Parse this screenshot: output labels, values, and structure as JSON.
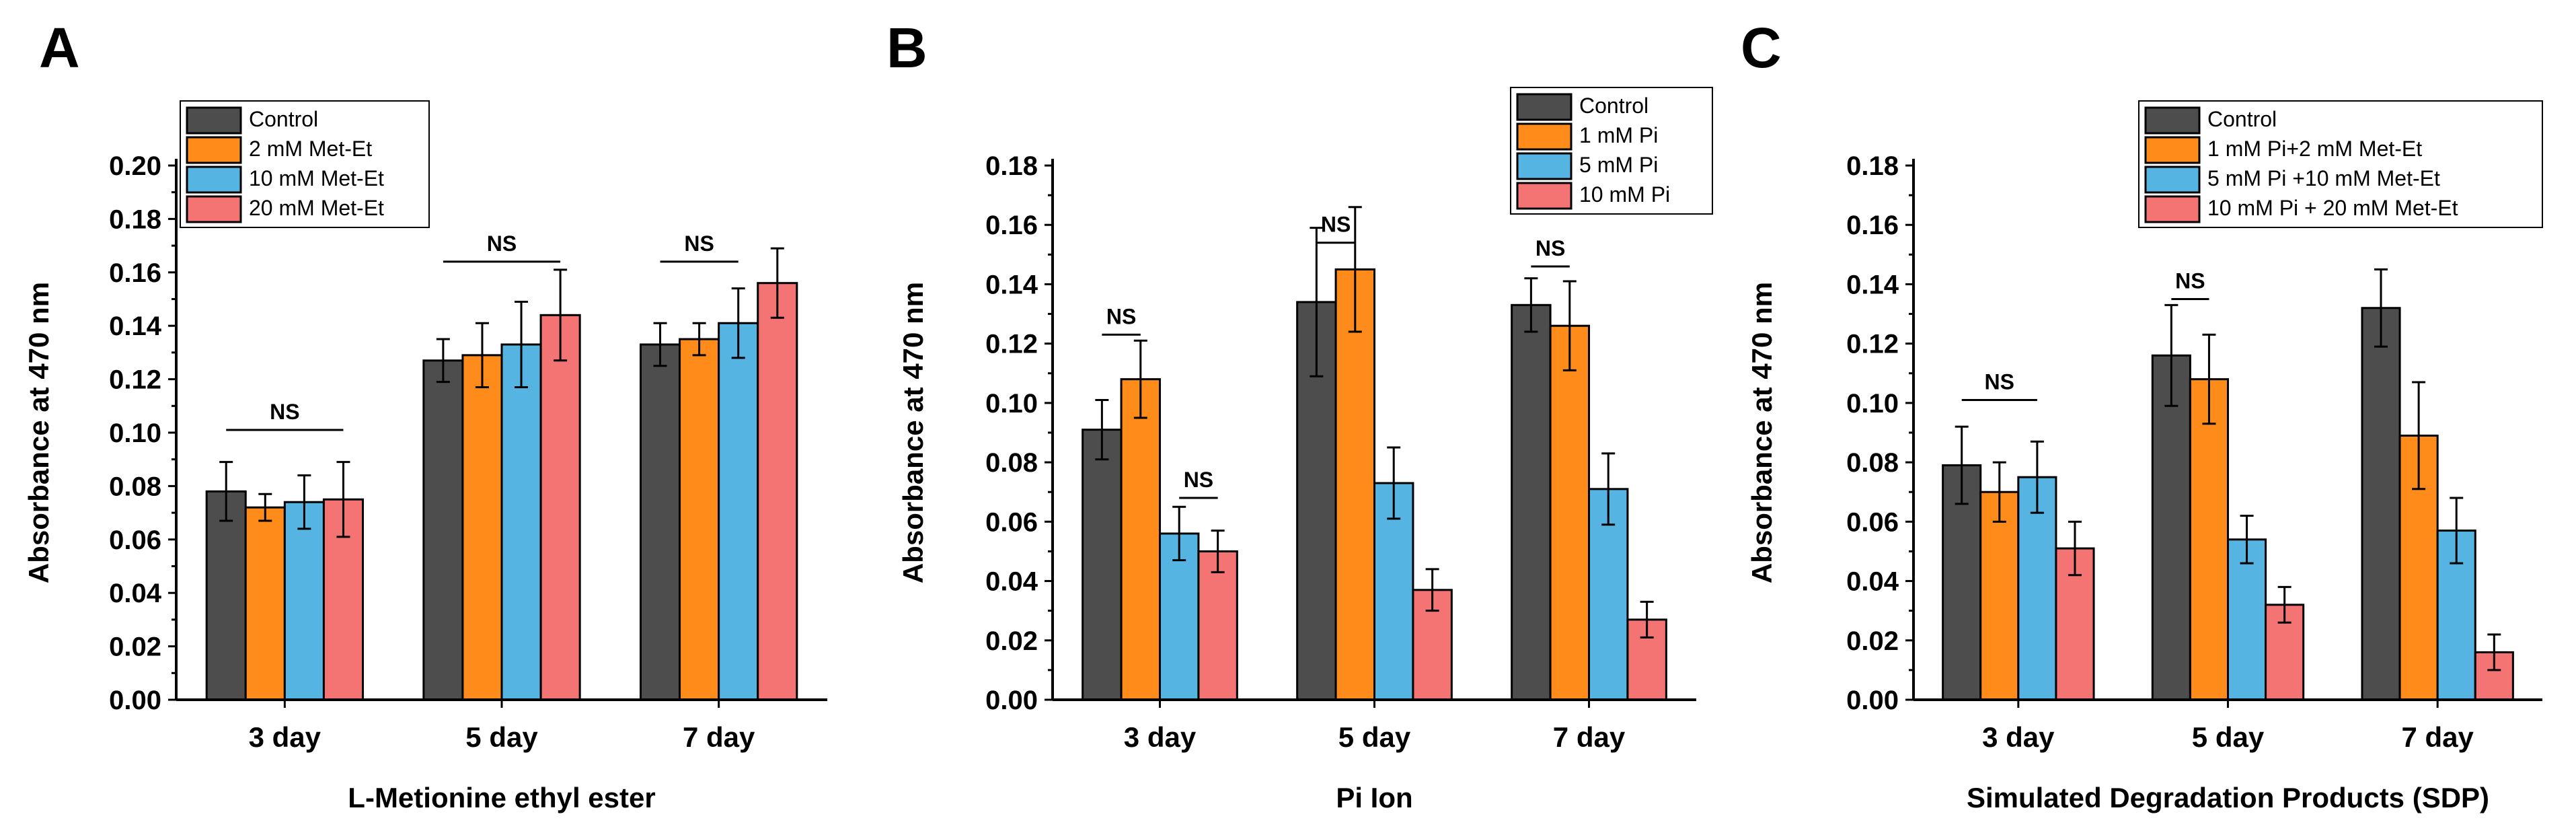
{
  "colors": {
    "series": [
      "#4d4d4d",
      "#ff8c1a",
      "#56b4e3",
      "#f47474"
    ],
    "axis": "#000000"
  },
  "chart_data": [
    {
      "type": "bar",
      "panel_label": "A",
      "xlabel": "L-Metionine ethyl ester",
      "ylabel": "Absorbance at 470 nm",
      "ylim": [
        0,
        0.2
      ],
      "yticks": [
        "0.00",
        "0.02",
        "0.04",
        "0.06",
        "0.08",
        "0.10",
        "0.12",
        "0.14",
        "0.16",
        "0.18",
        "0.20"
      ],
      "categories": [
        "3 day",
        "5 day",
        "7 day"
      ],
      "legend_position": "top-left",
      "series": [
        {
          "name": "Control",
          "values": [
            0.078,
            0.127,
            0.133
          ],
          "errors": [
            0.011,
            0.008,
            0.008
          ]
        },
        {
          "name": "2 mM Met-Et",
          "values": [
            0.072,
            0.129,
            0.135
          ],
          "errors": [
            0.005,
            0.012,
            0.006
          ]
        },
        {
          "name": "10 mM Met-Et",
          "values": [
            0.074,
            0.133,
            0.141
          ],
          "errors": [
            0.01,
            0.016,
            0.013
          ]
        },
        {
          "name": "20 mM Met-Et",
          "values": [
            0.075,
            0.144,
            0.156
          ],
          "errors": [
            0.014,
            0.017,
            0.013
          ]
        }
      ],
      "annotations": [
        {
          "text": "NS",
          "category_from": 0,
          "category_to": 0,
          "series_from": 0,
          "series_to": 3,
          "y": 0.101
        },
        {
          "text": "NS",
          "category_from": 1,
          "category_to": 1,
          "series_from": 0,
          "series_to": 3,
          "y": 0.164
        },
        {
          "text": "NS",
          "category_from": 2,
          "category_to": 2,
          "series_from": 0,
          "series_to": 2,
          "y": 0.164
        }
      ]
    },
    {
      "type": "bar",
      "panel_label": "B",
      "xlabel": "Pi Ion",
      "ylabel": "Absorbance at 470 nm",
      "ylim": [
        0,
        0.18
      ],
      "yticks": [
        "0.00",
        "0.02",
        "0.04",
        "0.06",
        "0.08",
        "0.10",
        "0.12",
        "0.14",
        "0.16",
        "0.18"
      ],
      "categories": [
        "3 day",
        "5 day",
        "7 day"
      ],
      "legend_position": "top-right",
      "series": [
        {
          "name": "Control",
          "values": [
            0.091,
            0.134,
            0.133
          ],
          "errors": [
            0.01,
            0.025,
            0.009
          ]
        },
        {
          "name": "1 mM Pi",
          "values": [
            0.108,
            0.145,
            0.126
          ],
          "errors": [
            0.013,
            0.021,
            0.015
          ]
        },
        {
          "name": "5 mM Pi",
          "values": [
            0.056,
            0.073,
            0.071
          ],
          "errors": [
            0.009,
            0.012,
            0.012
          ]
        },
        {
          "name": "10 mM Pi",
          "values": [
            0.05,
            0.037,
            0.027
          ],
          "errors": [
            0.007,
            0.007,
            0.006
          ]
        }
      ],
      "annotations": [
        {
          "text": "NS",
          "category_from": 0,
          "category_to": 0,
          "series_from": 0,
          "series_to": 1,
          "y": 0.123
        },
        {
          "text": "NS",
          "category_from": 0,
          "category_to": 0,
          "series_from": 2,
          "series_to": 3,
          "y": 0.068
        },
        {
          "text": "NS",
          "category_from": 1,
          "category_to": 1,
          "series_from": 0,
          "series_to": 1,
          "y": 0.154
        },
        {
          "text": "NS",
          "category_from": 2,
          "category_to": 2,
          "series_from": 0,
          "series_to": 1,
          "y": 0.146
        }
      ]
    },
    {
      "type": "bar",
      "panel_label": "C",
      "xlabel": "Simulated Degradation Products (SDP)",
      "ylabel": "Absorbance at 470 nm",
      "ylim": [
        0,
        0.18
      ],
      "yticks": [
        "0.00",
        "0.02",
        "0.04",
        "0.06",
        "0.08",
        "0.10",
        "0.12",
        "0.14",
        "0.16",
        "0.18"
      ],
      "categories": [
        "3 day",
        "5 day",
        "7 day"
      ],
      "legend_position": "top-right",
      "series": [
        {
          "name": "Control",
          "values": [
            0.079,
            0.116,
            0.132
          ],
          "errors": [
            0.013,
            0.017,
            0.013
          ]
        },
        {
          "name": "1 mM Pi+2 mM Met-Et",
          "values": [
            0.07,
            0.108,
            0.089
          ],
          "errors": [
            0.01,
            0.015,
            0.018
          ]
        },
        {
          "name": "5 mM Pi +10 mM Met-Et",
          "values": [
            0.075,
            0.054,
            0.057
          ],
          "errors": [
            0.012,
            0.008,
            0.011
          ]
        },
        {
          "name": "10 mM Pi + 20 mM Met-Et",
          "values": [
            0.051,
            0.032,
            0.016
          ],
          "errors": [
            0.009,
            0.006,
            0.006
          ]
        }
      ],
      "annotations": [
        {
          "text": "NS",
          "category_from": 0,
          "category_to": 0,
          "series_from": 0,
          "series_to": 2,
          "y": 0.101
        },
        {
          "text": "NS",
          "category_from": 1,
          "category_to": 1,
          "series_from": 0,
          "series_to": 1,
          "y": 0.135
        }
      ]
    }
  ]
}
